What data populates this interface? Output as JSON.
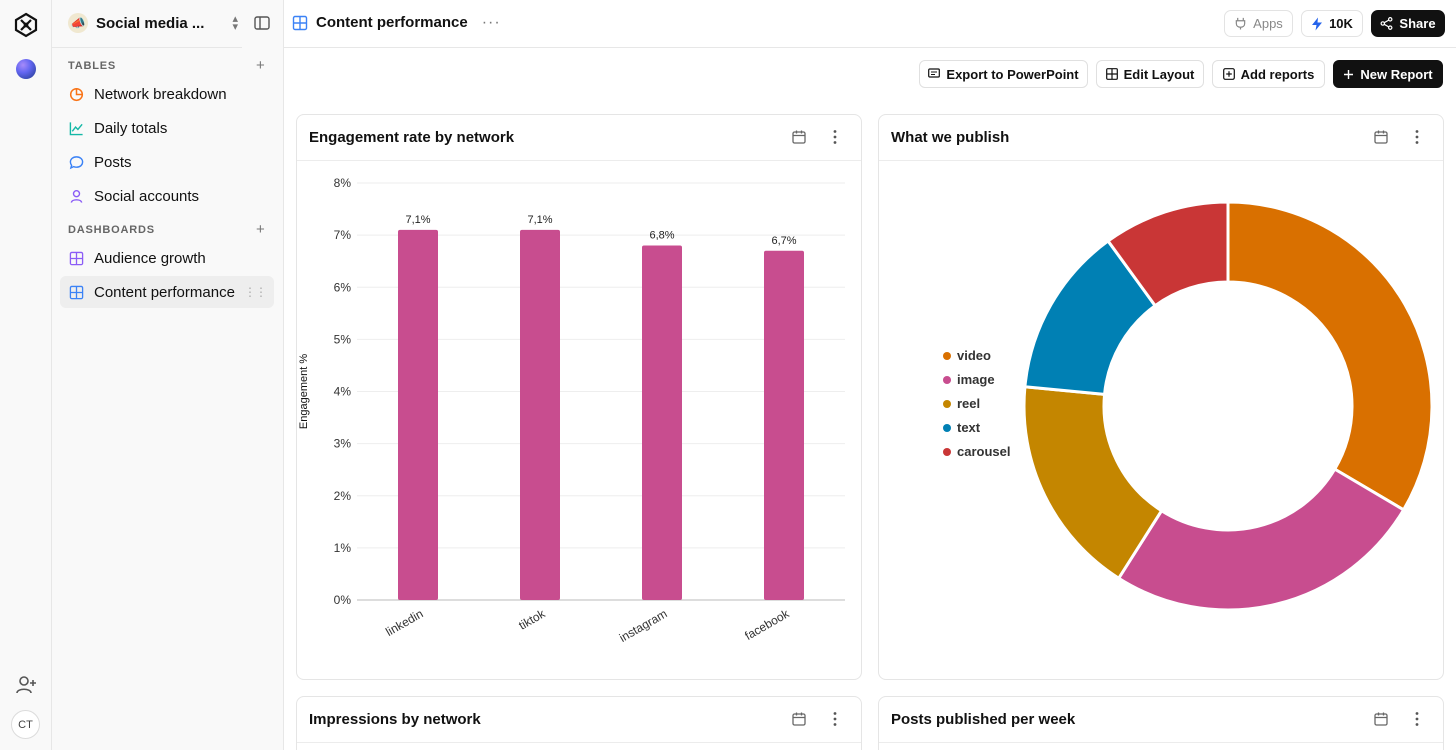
{
  "workspace": {
    "name": "Social media ...",
    "icon": "megaphone-icon"
  },
  "sidebar": {
    "sections": [
      {
        "heading": "TABLES",
        "items": [
          {
            "label": "Network breakdown",
            "icon": "pie-icon",
            "color": "#f97316"
          },
          {
            "label": "Daily totals",
            "icon": "line-chart-icon",
            "color": "#14b8a6"
          },
          {
            "label": "Posts",
            "icon": "speech-bubble-icon",
            "color": "#3b82f6"
          },
          {
            "label": "Social accounts",
            "icon": "person-icon",
            "color": "#8b5cf6"
          }
        ]
      },
      {
        "heading": "DASHBOARDS",
        "items": [
          {
            "label": "Audience growth",
            "icon": "dashboard-grid-icon",
            "color": "#8b5cf6"
          },
          {
            "label": "Content performance",
            "icon": "dashboard-grid-icon",
            "color": "#3b82f6",
            "active": true
          }
        ]
      }
    ]
  },
  "rail": {
    "avatar_initials": "CT"
  },
  "topbar": {
    "title": "Content performance",
    "apps_label": "Apps",
    "credits_label": "10K",
    "share_label": "Share"
  },
  "toolbar": {
    "export_label": "Export to PowerPoint",
    "edit_layout_label": "Edit Layout",
    "add_reports_label": "Add reports",
    "new_report_label": "New Report"
  },
  "cards": [
    {
      "title": "Engagement rate by network"
    },
    {
      "title": "What we publish"
    },
    {
      "title": "Impressions by network"
    },
    {
      "title": "Posts published per week"
    }
  ],
  "chart_data": [
    {
      "type": "bar",
      "title": "Engagement rate by network",
      "categories": [
        "linkedin",
        "tiktok",
        "instagram",
        "facebook"
      ],
      "values": [
        7.1,
        7.1,
        6.8,
        6.7
      ],
      "data_labels": [
        "7,1%",
        "7,1%",
        "6,8%",
        "6,7%"
      ],
      "ylabel": "Engagement %",
      "xlabel": "",
      "ylim": [
        0,
        8
      ],
      "yticks": [
        "0%",
        "1%",
        "2%",
        "3%",
        "4%",
        "5%",
        "6%",
        "7%",
        "8%"
      ],
      "color": "#c84d8f",
      "grid": true
    },
    {
      "type": "pie",
      "title": "What we publish",
      "donut": true,
      "legend_position": "left",
      "slices": [
        {
          "label": "video",
          "value": 33.5,
          "color": "#d97000"
        },
        {
          "label": "image",
          "value": 25.5,
          "color": "#c84d8f"
        },
        {
          "label": "reel",
          "value": 17.5,
          "color": "#c48600"
        },
        {
          "label": "text",
          "value": 13.5,
          "color": "#0080b4"
        },
        {
          "label": "carousel",
          "value": 10.0,
          "color": "#c93636"
        }
      ]
    }
  ]
}
